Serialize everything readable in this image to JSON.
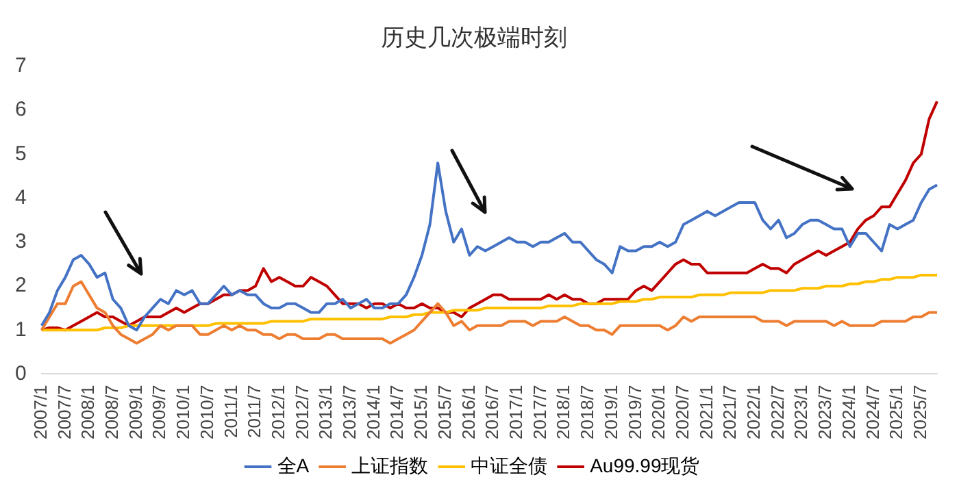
{
  "chart_data": {
    "type": "line",
    "title": "历史几次极端时刻",
    "categories": [
      "2007/1",
      null,
      null,
      "2007/7",
      null,
      null,
      "2008/1",
      null,
      null,
      "2008/7",
      null,
      null,
      "2009/1",
      null,
      null,
      "2009/7",
      null,
      null,
      "2010/1",
      null,
      null,
      "2010/7",
      null,
      null,
      "2011/1",
      null,
      null,
      "2011/7",
      null,
      null,
      "2012/1",
      null,
      null,
      "2012/7",
      null,
      null,
      "2013/1",
      null,
      null,
      "2013/7",
      null,
      null,
      "2014/1",
      null,
      null,
      "2014/7",
      null,
      null,
      "2015/1",
      null,
      null,
      "2015/7",
      null,
      null,
      "2016/1",
      null,
      null,
      "2016/7",
      null,
      null,
      "2017/1",
      null,
      null,
      "2017/7",
      null,
      null,
      "2018/1",
      null,
      null,
      "2018/7",
      null,
      null,
      "2019/1",
      null,
      null,
      "2019/7",
      null,
      null,
      "2020/1",
      null,
      null,
      "2020/7",
      null,
      null,
      "2021/1",
      null,
      null,
      "2021/7",
      null,
      null,
      "2022/1",
      null,
      null,
      "2022/7",
      null,
      null,
      "2023/1",
      null,
      null,
      "2023/7",
      null,
      null,
      "2024/1",
      null,
      null,
      "2024/7",
      null,
      null,
      "2025/1",
      null,
      null,
      "2025/7",
      null,
      null
    ],
    "series": [
      {
        "name": "全A",
        "color": "#4472c4",
        "values": [
          1.1,
          1.4,
          1.9,
          2.2,
          2.6,
          2.7,
          2.5,
          2.2,
          2.3,
          1.7,
          1.5,
          1.1,
          1.0,
          1.3,
          1.5,
          1.7,
          1.6,
          1.9,
          1.8,
          1.9,
          1.6,
          1.6,
          1.8,
          2.0,
          1.8,
          1.9,
          1.8,
          1.8,
          1.6,
          1.5,
          1.5,
          1.6,
          1.6,
          1.5,
          1.4,
          1.4,
          1.6,
          1.6,
          1.7,
          1.5,
          1.6,
          1.7,
          1.5,
          1.5,
          1.6,
          1.6,
          1.8,
          2.2,
          2.7,
          3.4,
          4.8,
          3.7,
          3.0,
          3.3,
          2.7,
          2.9,
          2.8,
          2.9,
          3.0,
          3.1,
          3.0,
          3.0,
          2.9,
          3.0,
          3.0,
          3.1,
          3.2,
          3.0,
          3.0,
          2.8,
          2.6,
          2.5,
          2.3,
          2.9,
          2.8,
          2.8,
          2.9,
          2.9,
          3.0,
          2.9,
          3.0,
          3.4,
          3.5,
          3.6,
          3.7,
          3.6,
          3.7,
          3.8,
          3.9,
          3.9,
          3.9,
          3.5,
          3.3,
          3.5,
          3.1,
          3.2,
          3.4,
          3.5,
          3.5,
          3.4,
          3.3,
          3.3,
          2.9,
          3.2,
          3.2,
          3.0,
          2.8,
          3.4,
          3.3,
          3.4,
          3.5,
          3.9,
          4.2,
          4.3
        ]
      },
      {
        "name": "上证指数",
        "color": "#ed7d31",
        "values": [
          1.0,
          1.3,
          1.6,
          1.6,
          2.0,
          2.1,
          1.8,
          1.5,
          1.4,
          1.1,
          0.9,
          0.8,
          0.7,
          0.8,
          0.9,
          1.1,
          1.0,
          1.1,
          1.1,
          1.1,
          0.9,
          0.9,
          1.0,
          1.1,
          1.0,
          1.1,
          1.0,
          1.0,
          0.9,
          0.9,
          0.8,
          0.9,
          0.9,
          0.8,
          0.8,
          0.8,
          0.9,
          0.9,
          0.8,
          0.8,
          0.8,
          0.8,
          0.8,
          0.8,
          0.7,
          0.8,
          0.9,
          1.0,
          1.2,
          1.4,
          1.6,
          1.4,
          1.1,
          1.2,
          1.0,
          1.1,
          1.1,
          1.1,
          1.1,
          1.2,
          1.2,
          1.2,
          1.1,
          1.2,
          1.2,
          1.2,
          1.3,
          1.2,
          1.1,
          1.1,
          1.0,
          1.0,
          0.9,
          1.1,
          1.1,
          1.1,
          1.1,
          1.1,
          1.1,
          1.0,
          1.1,
          1.3,
          1.2,
          1.3,
          1.3,
          1.3,
          1.3,
          1.3,
          1.3,
          1.3,
          1.3,
          1.2,
          1.2,
          1.2,
          1.1,
          1.2,
          1.2,
          1.2,
          1.2,
          1.2,
          1.1,
          1.2,
          1.1,
          1.1,
          1.1,
          1.1,
          1.2,
          1.2,
          1.2,
          1.2,
          1.3,
          1.3,
          1.4,
          1.4
        ]
      },
      {
        "name": "中证全债",
        "color": "#ffc000",
        "values": [
          1.0,
          1.0,
          1.0,
          1.0,
          1.0,
          1.0,
          1.0,
          1.0,
          1.05,
          1.05,
          1.05,
          1.1,
          1.1,
          1.1,
          1.1,
          1.1,
          1.1,
          1.1,
          1.1,
          1.1,
          1.1,
          1.1,
          1.15,
          1.15,
          1.15,
          1.15,
          1.15,
          1.15,
          1.15,
          1.2,
          1.2,
          1.2,
          1.2,
          1.2,
          1.25,
          1.25,
          1.25,
          1.25,
          1.25,
          1.25,
          1.25,
          1.25,
          1.25,
          1.25,
          1.3,
          1.3,
          1.3,
          1.35,
          1.35,
          1.4,
          1.4,
          1.4,
          1.45,
          1.45,
          1.45,
          1.45,
          1.5,
          1.5,
          1.5,
          1.5,
          1.5,
          1.5,
          1.5,
          1.5,
          1.55,
          1.55,
          1.55,
          1.55,
          1.6,
          1.6,
          1.6,
          1.6,
          1.6,
          1.65,
          1.65,
          1.65,
          1.7,
          1.7,
          1.75,
          1.75,
          1.75,
          1.75,
          1.75,
          1.8,
          1.8,
          1.8,
          1.8,
          1.85,
          1.85,
          1.85,
          1.85,
          1.85,
          1.9,
          1.9,
          1.9,
          1.9,
          1.95,
          1.95,
          1.95,
          2.0,
          2.0,
          2.0,
          2.05,
          2.05,
          2.1,
          2.1,
          2.15,
          2.15,
          2.2,
          2.2,
          2.2,
          2.25,
          2.25,
          2.25
        ]
      },
      {
        "name": "Au99.99现货",
        "color": "#c00000",
        "values": [
          1.0,
          1.05,
          1.05,
          1.0,
          1.1,
          1.2,
          1.3,
          1.4,
          1.3,
          1.3,
          1.2,
          1.1,
          1.2,
          1.3,
          1.3,
          1.3,
          1.4,
          1.5,
          1.4,
          1.5,
          1.6,
          1.6,
          1.7,
          1.8,
          1.8,
          1.9,
          1.9,
          2.0,
          2.4,
          2.1,
          2.2,
          2.1,
          2.0,
          2.0,
          2.2,
          2.1,
          2.0,
          1.8,
          1.6,
          1.6,
          1.6,
          1.5,
          1.6,
          1.6,
          1.5,
          1.6,
          1.5,
          1.5,
          1.6,
          1.5,
          1.5,
          1.4,
          1.4,
          1.3,
          1.5,
          1.6,
          1.7,
          1.8,
          1.8,
          1.7,
          1.7,
          1.7,
          1.7,
          1.7,
          1.8,
          1.7,
          1.8,
          1.7,
          1.7,
          1.6,
          1.6,
          1.7,
          1.7,
          1.7,
          1.7,
          1.9,
          2.0,
          1.9,
          2.1,
          2.3,
          2.5,
          2.6,
          2.5,
          2.5,
          2.3,
          2.3,
          2.3,
          2.3,
          2.3,
          2.3,
          2.4,
          2.5,
          2.4,
          2.4,
          2.3,
          2.5,
          2.6,
          2.7,
          2.8,
          2.7,
          2.8,
          2.9,
          3.0,
          3.3,
          3.5,
          3.6,
          3.8,
          3.8,
          4.1,
          4.4,
          4.8,
          5.0,
          5.8,
          6.2
        ]
      }
    ],
    "ylim": [
      0,
      7
    ],
    "yticks": [
      0,
      1,
      2,
      3,
      4,
      5,
      6,
      7
    ],
    "grid": false,
    "legend": "bottom",
    "marker": "none"
  }
}
